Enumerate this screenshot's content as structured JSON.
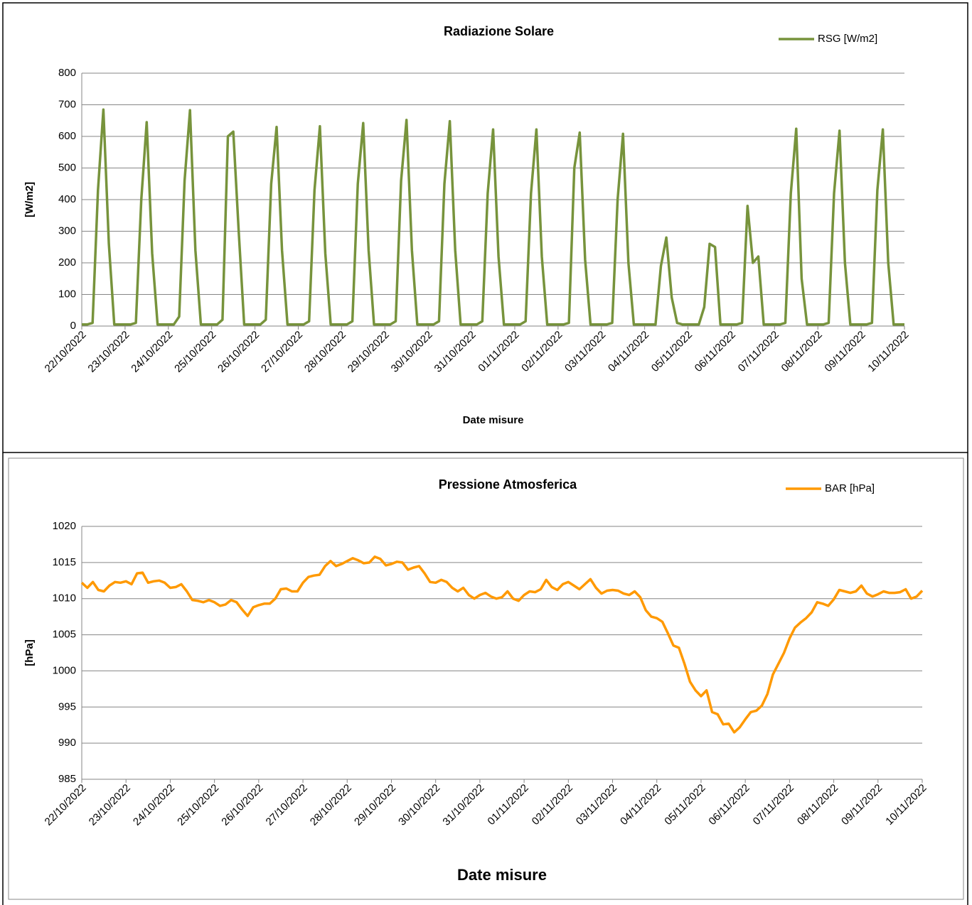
{
  "chart_data": [
    {
      "type": "line",
      "title": "Radiazione Solare",
      "xlabel": "Date misure",
      "ylabel": "[W/m2]",
      "ylim": [
        0,
        800
      ],
      "yticks": [
        0,
        100,
        200,
        300,
        400,
        500,
        600,
        700,
        800
      ],
      "grid": true,
      "legend": "top-right",
      "categories": [
        "22/10/2022",
        null,
        null,
        null,
        null,
        null,
        null,
        null,
        "23/10/2022",
        null,
        null,
        null,
        null,
        null,
        null,
        null,
        "24/10/2022",
        null,
        null,
        null,
        null,
        null,
        null,
        null,
        "25/10/2022",
        null,
        null,
        null,
        null,
        null,
        null,
        null,
        "26/10/2022",
        null,
        null,
        null,
        null,
        null,
        null,
        null,
        "27/10/2022",
        null,
        null,
        null,
        null,
        null,
        null,
        null,
        "28/10/2022",
        null,
        null,
        null,
        null,
        null,
        null,
        null,
        "29/10/2022",
        null,
        null,
        null,
        null,
        null,
        null,
        null,
        "30/10/2022",
        null,
        null,
        null,
        null,
        null,
        null,
        null,
        "31/10/2022",
        null,
        null,
        null,
        null,
        null,
        null,
        null,
        "01/11/2022",
        null,
        null,
        null,
        null,
        null,
        null,
        null,
        "02/11/2022",
        null,
        null,
        null,
        null,
        null,
        null,
        null,
        "03/11/2022",
        null,
        null,
        null,
        null,
        null,
        null,
        null,
        "04/11/2022",
        null,
        null,
        null,
        null,
        null,
        null,
        null,
        "05/11/2022",
        null,
        null,
        null,
        null,
        null,
        null,
        null,
        "06/11/2022",
        null,
        null,
        null,
        null,
        null,
        null,
        null,
        "07/11/2022",
        null,
        null,
        null,
        null,
        null,
        null,
        null,
        "08/11/2022",
        null,
        null,
        null,
        null,
        null,
        null,
        null,
        "09/11/2022",
        null,
        null,
        null,
        null,
        null,
        null,
        null,
        "10/11/2022"
      ],
      "series": [
        {
          "name": "RSG [W/m2]",
          "color": "#77933c",
          "values": [
            5,
            5,
            10,
            430,
            685,
            260,
            5,
            5,
            5,
            5,
            10,
            400,
            645,
            230,
            5,
            5,
            5,
            5,
            30,
            460,
            683,
            240,
            5,
            5,
            5,
            5,
            20,
            600,
            615,
            300,
            5,
            5,
            5,
            5,
            20,
            450,
            630,
            240,
            5,
            5,
            5,
            5,
            15,
            430,
            632,
            230,
            5,
            5,
            5,
            5,
            15,
            450,
            642,
            240,
            5,
            5,
            5,
            5,
            15,
            460,
            652,
            240,
            5,
            5,
            5,
            5,
            15,
            450,
            648,
            240,
            5,
            5,
            5,
            5,
            15,
            420,
            622,
            220,
            5,
            5,
            5,
            5,
            15,
            420,
            622,
            220,
            5,
            5,
            5,
            5,
            10,
            500,
            612,
            210,
            5,
            5,
            5,
            5,
            10,
            400,
            608,
            200,
            5,
            5,
            5,
            5,
            5,
            190,
            280,
            90,
            10,
            5,
            5,
            5,
            5,
            60,
            260,
            250,
            5,
            5,
            5,
            5,
            10,
            380,
            200,
            220,
            5,
            5,
            5,
            5,
            10,
            420,
            624,
            150,
            5,
            5,
            5,
            5,
            10,
            420,
            618,
            200,
            5,
            5,
            5,
            5,
            10,
            430,
            622,
            200,
            5,
            5,
            5
          ]
        }
      ]
    },
    {
      "type": "line",
      "title": "Pressione Atmosferica",
      "xlabel": "Date misure",
      "ylabel": "[hPa]",
      "ylim": [
        985,
        1020
      ],
      "yticks": [
        985,
        990,
        995,
        1000,
        1005,
        1010,
        1015,
        1020
      ],
      "grid": true,
      "legend": "top-right",
      "categories": [
        "22/10/2022",
        null,
        null,
        null,
        null,
        null,
        null,
        null,
        "23/10/2022",
        null,
        null,
        null,
        null,
        null,
        null,
        null,
        "24/10/2022",
        null,
        null,
        null,
        null,
        null,
        null,
        null,
        "25/10/2022",
        null,
        null,
        null,
        null,
        null,
        null,
        null,
        "26/10/2022",
        null,
        null,
        null,
        null,
        null,
        null,
        null,
        "27/10/2022",
        null,
        null,
        null,
        null,
        null,
        null,
        null,
        "28/10/2022",
        null,
        null,
        null,
        null,
        null,
        null,
        null,
        "29/10/2022",
        null,
        null,
        null,
        null,
        null,
        null,
        null,
        "30/10/2022",
        null,
        null,
        null,
        null,
        null,
        null,
        null,
        "31/10/2022",
        null,
        null,
        null,
        null,
        null,
        null,
        null,
        "01/11/2022",
        null,
        null,
        null,
        null,
        null,
        null,
        null,
        "02/11/2022",
        null,
        null,
        null,
        null,
        null,
        null,
        null,
        "03/11/2022",
        null,
        null,
        null,
        null,
        null,
        null,
        null,
        "04/11/2022",
        null,
        null,
        null,
        null,
        null,
        null,
        null,
        "05/11/2022",
        null,
        null,
        null,
        null,
        null,
        null,
        null,
        "06/11/2022",
        null,
        null,
        null,
        null,
        null,
        null,
        null,
        "07/11/2022",
        null,
        null,
        null,
        null,
        null,
        null,
        null,
        "08/11/2022",
        null,
        null,
        null,
        null,
        null,
        null,
        null,
        "09/11/2022",
        null,
        null,
        null,
        null,
        null,
        null,
        null,
        "10/11/2022"
      ],
      "series": [
        {
          "name": "BAR [hPa]",
          "color": "#ff9900",
          "values": [
            1012.2,
            1011.5,
            1012.3,
            1011.2,
            1011,
            1011.8,
            1012.3,
            1012.2,
            1012.4,
            1012,
            1013.5,
            1013.6,
            1012.2,
            1012.4,
            1012.5,
            1012.2,
            1011.5,
            1011.6,
            1012,
            1011,
            1009.8,
            1009.7,
            1009.5,
            1009.8,
            1009.5,
            1009,
            1009.2,
            1009.8,
            1009.5,
            1008.5,
            1007.6,
            1008.8,
            1009.1,
            1009.3,
            1009.3,
            1010,
            1011.3,
            1011.4,
            1011,
            1011,
            1012.2,
            1013,
            1013.2,
            1013.3,
            1014.5,
            1015.2,
            1014.5,
            1014.8,
            1015.2,
            1015.6,
            1015.3,
            1014.9,
            1015,
            1015.8,
            1015.5,
            1014.6,
            1014.8,
            1015.1,
            1015,
            1014,
            1014.3,
            1014.5,
            1013.5,
            1012.3,
            1012.2,
            1012.6,
            1012.3,
            1011.5,
            1011,
            1011.5,
            1010.5,
            1010,
            1010.5,
            1010.8,
            1010.3,
            1010,
            1010.2,
            1011,
            1010,
            1009.7,
            1010.5,
            1011,
            1010.9,
            1011.3,
            1012.6,
            1011.6,
            1011.2,
            1012,
            1012.3,
            1011.8,
            1011.3,
            1012,
            1012.7,
            1011.5,
            1010.7,
            1011.1,
            1011.2,
            1011.1,
            1010.7,
            1010.5,
            1011,
            1010.2,
            1008.4,
            1007.5,
            1007.3,
            1006.8,
            1005.2,
            1003.5,
            1003.2,
            1001,
            998.5,
            997.3,
            996.5,
            997.3,
            994.3,
            994,
            992.6,
            992.7,
            991.5,
            992.2,
            993.3,
            994.3,
            994.5,
            995.2,
            996.8,
            999.5,
            1001,
            1002.5,
            1004.5,
            1006,
            1006.7,
            1007.3,
            1008.1,
            1009.5,
            1009.3,
            1009,
            1009.9,
            1011.2,
            1011,
            1010.8,
            1011,
            1011.8,
            1010.7,
            1010.3,
            1010.6,
            1011,
            1010.8,
            1010.8,
            1010.9,
            1011.3,
            1010,
            1010.3,
            1011.1
          ]
        }
      ]
    }
  ]
}
